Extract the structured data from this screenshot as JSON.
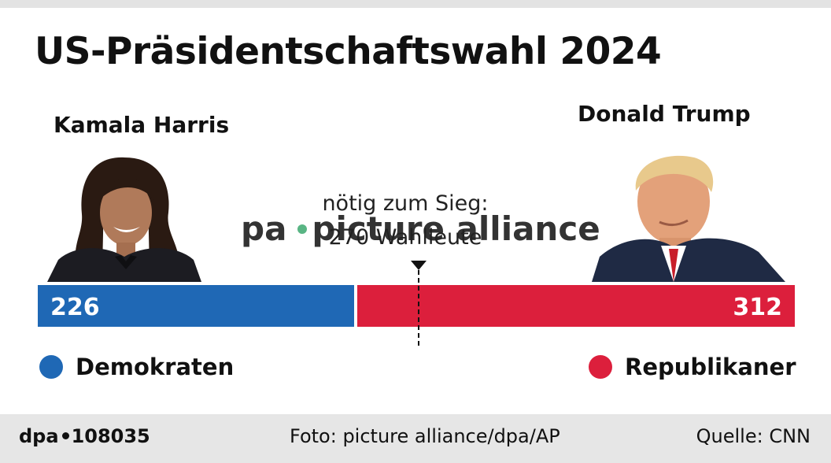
{
  "title": "US-Präsidentschaftswahl 2024",
  "candidates": {
    "left": {
      "name": "Kamala Harris",
      "party": "Demokraten",
      "color": "#1f68b5"
    },
    "right": {
      "name": "Donald Trump",
      "party": "Republikaner",
      "color": "#dc1f3c"
    }
  },
  "threshold": {
    "line1": "nötig zum Sieg:",
    "line2": "270 Wahlleute",
    "value": 270
  },
  "watermark": {
    "left": "pa",
    "right": "picture alliance"
  },
  "footer": {
    "id_prefix": "dpa",
    "id_number": "108035",
    "photo_credit": "Foto: picture alliance/dpa/AP",
    "source": "Quelle: CNN"
  },
  "chart_data": {
    "type": "bar",
    "orientation": "horizontal-stacked",
    "categories": [
      "Demokraten",
      "Republikaner"
    ],
    "values": [
      226,
      312
    ],
    "total": 538,
    "threshold": 270,
    "colors": [
      "#1f68b5",
      "#dc1f3c"
    ]
  }
}
